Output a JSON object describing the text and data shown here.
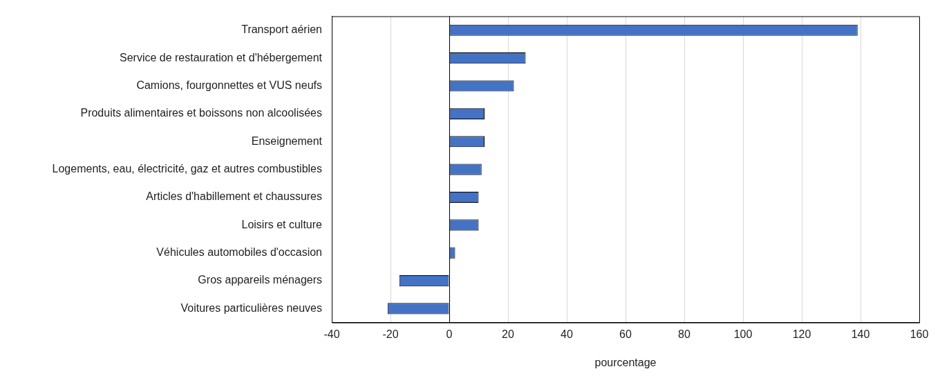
{
  "chart_data": {
    "type": "bar",
    "orientation": "horizontal",
    "xlabel": "pourcentage",
    "categories": [
      "Transport aérien",
      "Service de restauration et d'hébergement",
      "Camions, fourgonnettes et VUS neufs",
      "Produits alimentaires et boissons non alcoolisées",
      "Enseignement",
      "Logements, eau, électricité, gaz et autres combustibles",
      "Articles d'habillement et chaussures",
      "Loisirs et culture",
      "Véhicules automobiles d'occasion",
      "Gros appareils ménagers",
      "Voitures particulières neuves"
    ],
    "values": [
      139,
      26,
      22,
      12,
      12,
      11,
      10,
      10,
      2,
      -17,
      -21
    ],
    "color": "#4472c4",
    "xlim": [
      -40,
      160
    ],
    "xticks": [
      -40,
      -20,
      0,
      20,
      40,
      60,
      80,
      100,
      120,
      140,
      160
    ],
    "grid": "x",
    "legend": false
  }
}
